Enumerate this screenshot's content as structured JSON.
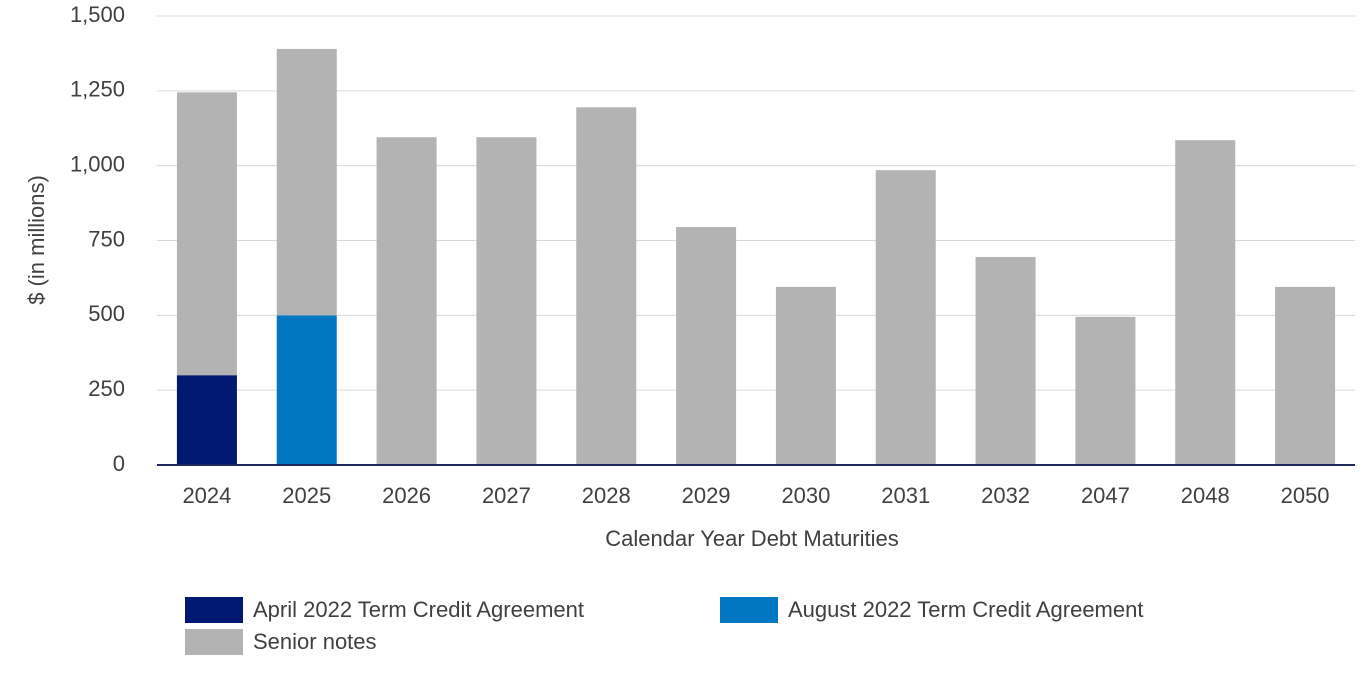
{
  "chart_data": {
    "type": "stacked_bar",
    "y_label": "$ (in millions)",
    "x_label": "Calendar Year Debt Maturities",
    "categories": [
      "2024",
      "2025",
      "2026",
      "2027",
      "2028",
      "2029",
      "2030",
      "2031",
      "2032",
      "2047",
      "2048",
      "2050"
    ],
    "series": [
      {
        "name": "April 2022 Term Credit Agreement",
        "color": "#001871",
        "values": [
          300,
          null,
          null,
          null,
          null,
          null,
          null,
          null,
          null,
          null,
          null,
          null
        ]
      },
      {
        "name": "August 2022 Term Credit Agreement",
        "color": "#0077c0",
        "values": [
          null,
          500,
          null,
          null,
          null,
          null,
          null,
          null,
          null,
          null,
          null,
          null
        ]
      },
      {
        "name": "Senior notes",
        "color": "#b3b3b3",
        "values": [
          945,
          890,
          1095,
          1095,
          1195,
          795,
          595,
          985,
          695,
          495,
          1085,
          595
        ]
      }
    ],
    "ylim": [
      0,
      1500
    ],
    "yticks": [
      0,
      250,
      500,
      750,
      {
        "value": 1000,
        "label": "1,000"
      },
      {
        "value": 1250,
        "label": "1,250"
      },
      {
        "value": 1500,
        "label": "1,500"
      }
    ],
    "grid": true,
    "legend": "bottom"
  }
}
